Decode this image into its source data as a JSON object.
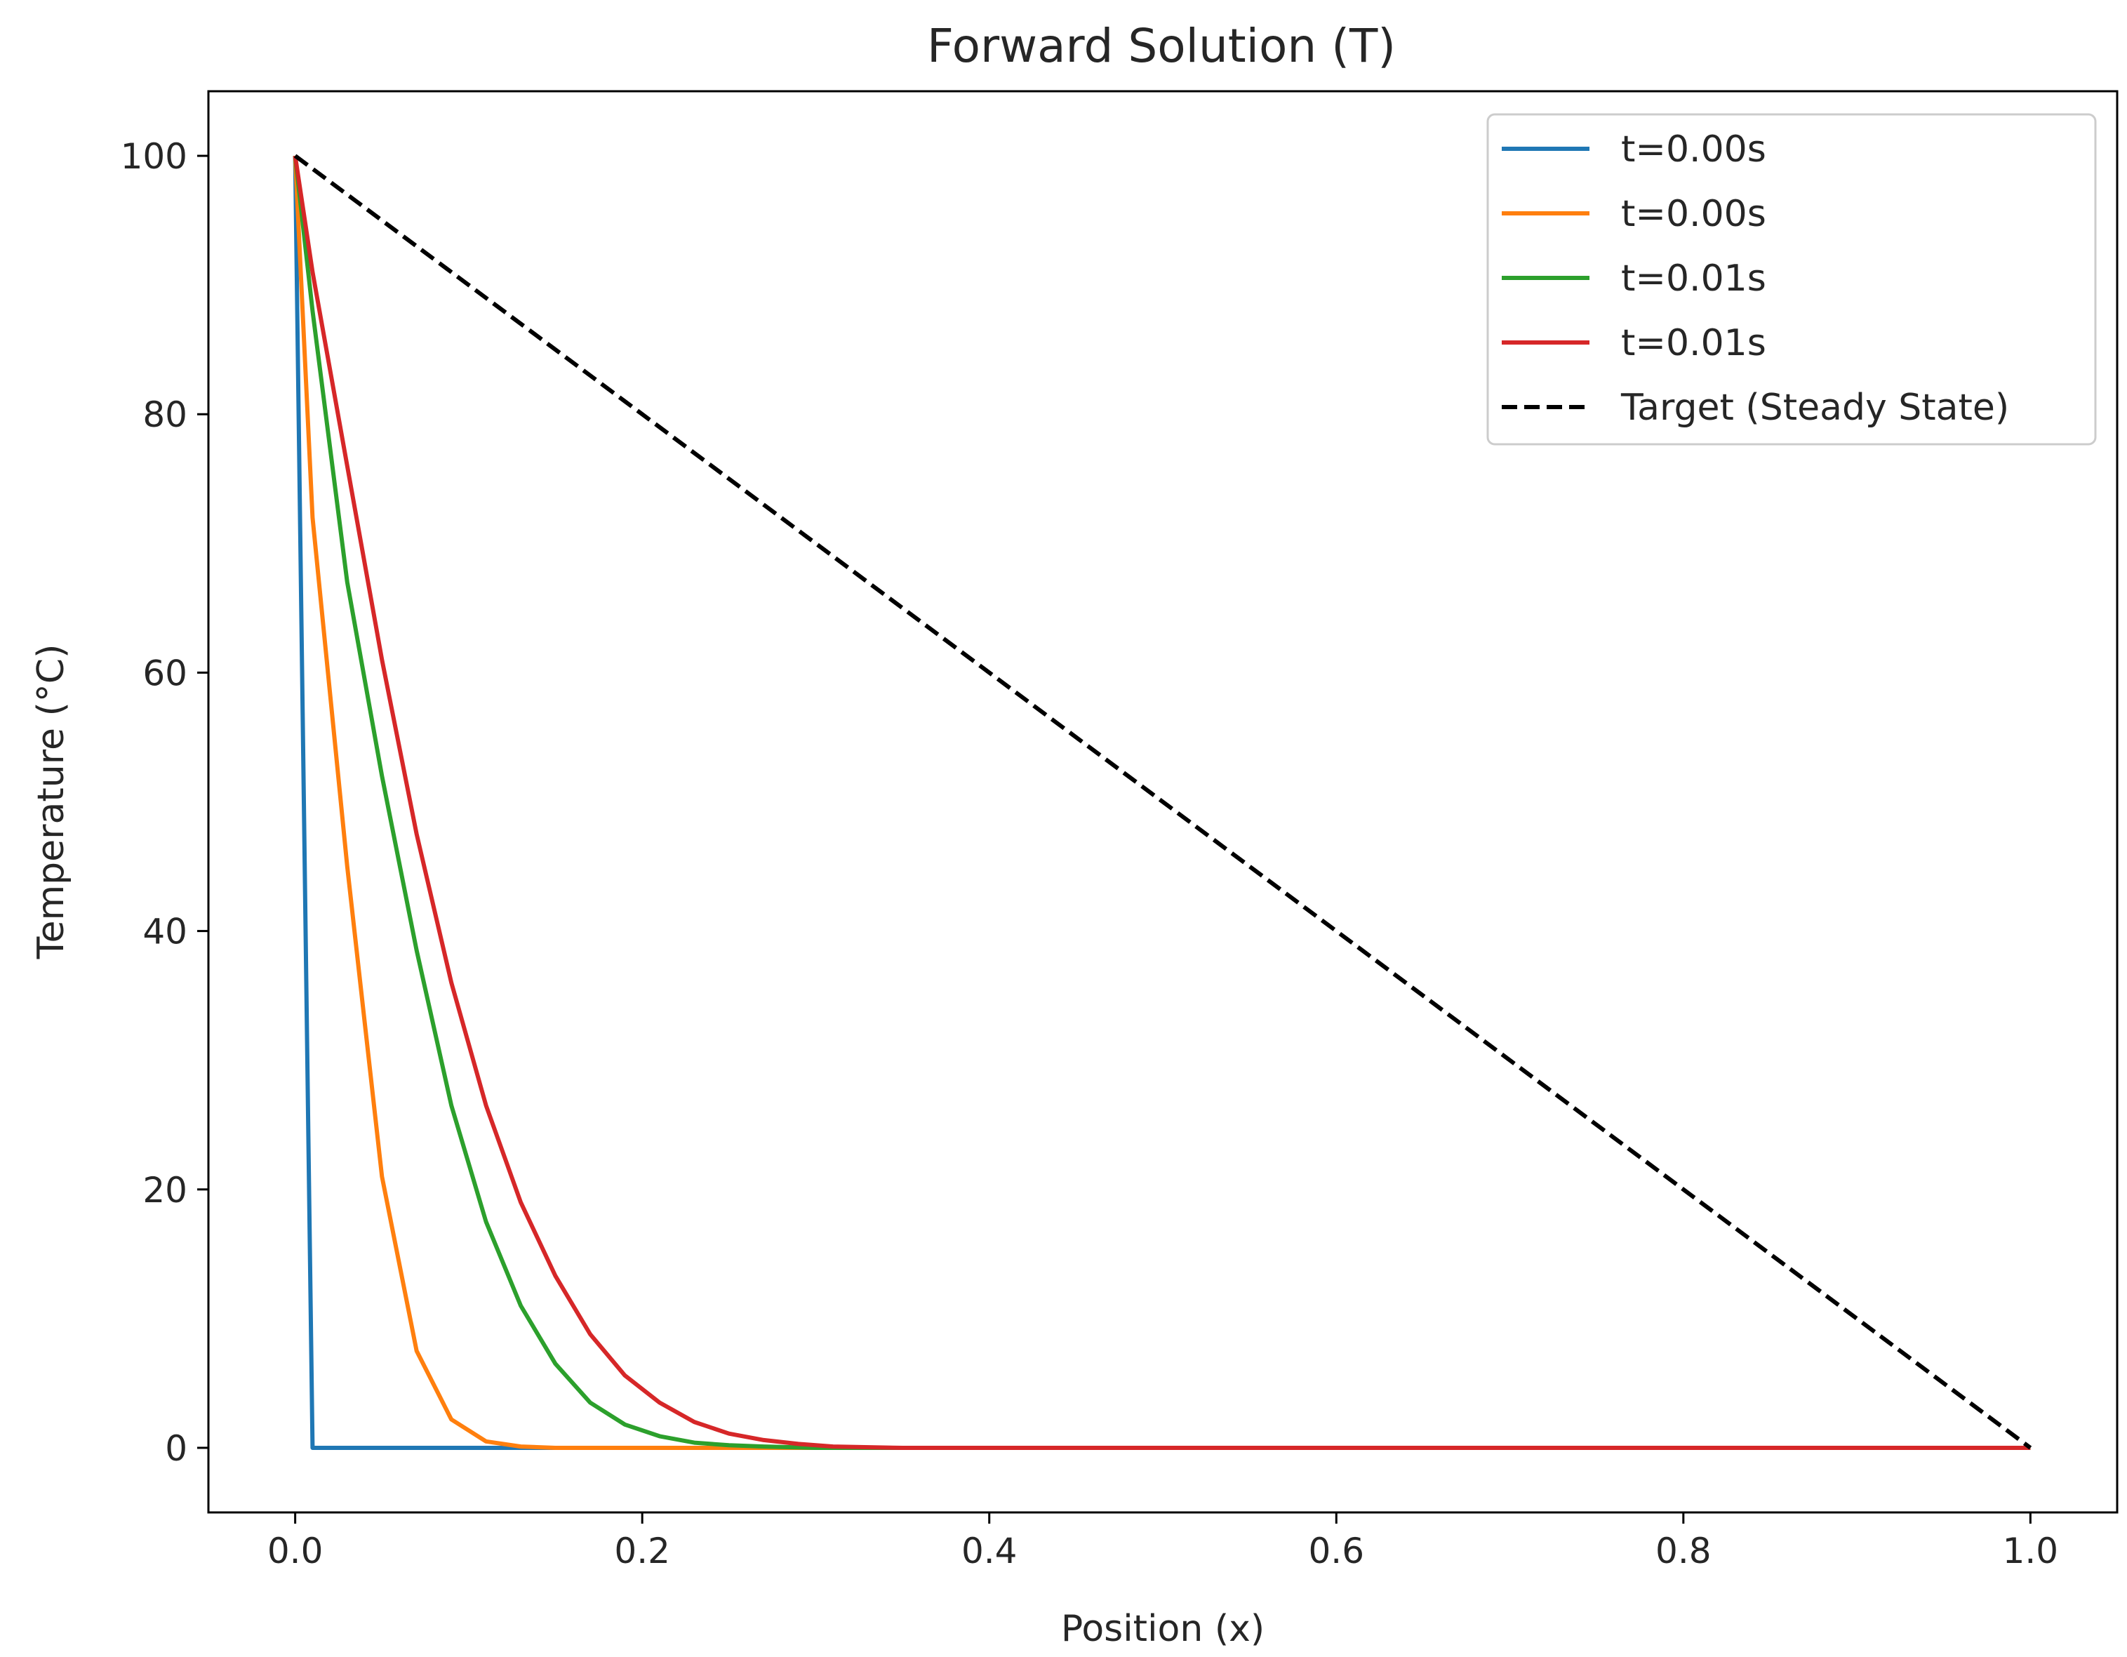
{
  "chart_data": {
    "type": "line",
    "title": "Forward Solution (T)",
    "xlabel": "Position (x)",
    "ylabel": "Temperature (°C)",
    "xlim": [
      -0.05,
      1.05
    ],
    "ylim": [
      -5,
      105
    ],
    "xticks": [
      "0.0",
      "0.2",
      "0.4",
      "0.6",
      "0.8",
      "1.0"
    ],
    "xtick_values": [
      0.0,
      0.2,
      0.4,
      0.6,
      0.8,
      1.0
    ],
    "yticks": [
      "0",
      "20",
      "40",
      "60",
      "80",
      "100"
    ],
    "ytick_values": [
      0,
      20,
      40,
      60,
      80,
      100
    ],
    "grid": false,
    "legend_position": "top-right",
    "series": [
      {
        "name": "t=0.00s",
        "color": "#1f77b4",
        "style": "solid",
        "x": [
          0.0,
          0.01,
          0.02,
          0.05,
          0.1,
          0.2,
          0.4,
          0.6,
          0.8,
          1.0
        ],
        "y": [
          100,
          0,
          0,
          0,
          0,
          0,
          0,
          0,
          0,
          0
        ]
      },
      {
        "name": "t=0.00s",
        "color": "#ff7f0e",
        "style": "solid",
        "x": [
          0.0,
          0.01,
          0.03,
          0.05,
          0.07,
          0.09,
          0.11,
          0.13,
          0.15,
          0.2,
          0.4,
          0.6,
          0.8,
          1.0
        ],
        "y": [
          100,
          72,
          45,
          21,
          7.5,
          2.2,
          0.5,
          0.1,
          0.0,
          0,
          0,
          0,
          0,
          0
        ]
      },
      {
        "name": "t=0.01s",
        "color": "#2ca02c",
        "style": "solid",
        "x": [
          0.0,
          0.01,
          0.03,
          0.05,
          0.07,
          0.09,
          0.11,
          0.13,
          0.15,
          0.17,
          0.19,
          0.21,
          0.23,
          0.25,
          0.27,
          0.3,
          0.35,
          0.4,
          0.6,
          0.8,
          1.0
        ],
        "y": [
          100,
          88,
          67,
          52,
          38.5,
          26.5,
          17.5,
          11,
          6.5,
          3.5,
          1.8,
          0.9,
          0.4,
          0.2,
          0.1,
          0,
          0,
          0,
          0,
          0,
          0
        ]
      },
      {
        "name": "t=0.01s",
        "color": "#d62728",
        "style": "solid",
        "x": [
          0.0,
          0.01,
          0.03,
          0.05,
          0.07,
          0.09,
          0.11,
          0.13,
          0.15,
          0.17,
          0.19,
          0.21,
          0.23,
          0.25,
          0.27,
          0.29,
          0.31,
          0.35,
          0.4,
          0.6,
          0.8,
          1.0
        ],
        "y": [
          100,
          91,
          76,
          61,
          47.5,
          36,
          26.5,
          19,
          13.3,
          8.8,
          5.6,
          3.5,
          2.0,
          1.1,
          0.6,
          0.3,
          0.1,
          0,
          0,
          0,
          0,
          0
        ]
      },
      {
        "name": "Target (Steady State)",
        "color": "#000000",
        "style": "dashed",
        "x": [
          0.0,
          1.0
        ],
        "y": [
          100,
          0
        ]
      }
    ]
  }
}
